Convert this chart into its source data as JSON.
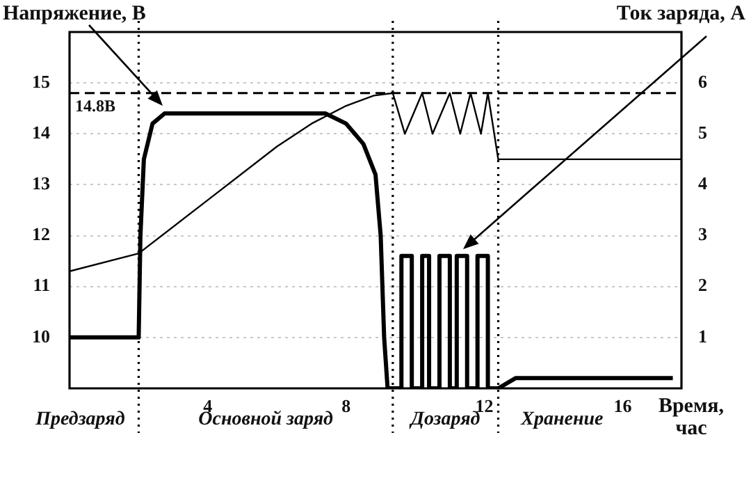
{
  "chart_data": {
    "type": "line",
    "ylabel": "Напряжение, В",
    "y2label": "Ток заряда, А",
    "xlabel": "Время, час",
    "xlim": [
      0,
      17.7
    ],
    "xticks": [
      4,
      8,
      12,
      16
    ],
    "ylim": [
      9,
      16
    ],
    "yticks": [
      10,
      11,
      12,
      13,
      14,
      15
    ],
    "y2lim": [
      0,
      7
    ],
    "y2ticks": [
      1,
      2,
      3,
      4,
      5,
      6
    ],
    "grid": "y",
    "legend": false,
    "marker": "none",
    "line_style": "solid",
    "series": [
      {
        "color": "#000000",
        "axis": "y",
        "x": [
          0,
          2.0,
          4,
          6,
          7,
          8,
          8.8,
          9.35,
          9.7,
          10.2,
          10.5,
          11.0,
          11.3,
          11.6,
          11.9,
          12.1,
          12.4,
          17.7
        ],
        "values": [
          11.3,
          11.65,
          12.7,
          13.75,
          14.2,
          14.55,
          14.75,
          14.8,
          14.0,
          14.8,
          14.0,
          14.8,
          14.0,
          14.8,
          14.0,
          14.8,
          13.5,
          13.5
        ]
      },
      {
        "color": "#000000",
        "axis": "y2",
        "x": [
          0,
          2.0,
          2.05,
          2.15,
          2.4,
          2.75,
          7.4,
          8.0,
          8.5,
          8.85,
          9.0,
          9.1,
          9.2,
          9.6,
          9.6,
          9.9,
          9.9,
          10.2,
          10.2,
          10.4,
          10.4,
          10.7,
          10.7,
          11.0,
          11.0,
          11.2,
          11.2,
          11.5,
          11.5,
          11.8,
          11.8,
          12.1,
          12.1,
          12.4,
          12.9,
          17.45
        ],
        "values": [
          1.0,
          1.0,
          3.0,
          4.5,
          5.2,
          5.4,
          5.4,
          5.2,
          4.8,
          4.2,
          3.0,
          1.0,
          0,
          0,
          2.6,
          2.6,
          0,
          0,
          2.6,
          2.6,
          0,
          0,
          2.6,
          2.6,
          0,
          0,
          2.6,
          2.6,
          0,
          0,
          2.6,
          2.6,
          0,
          0,
          0.2,
          0.2
        ]
      }
    ],
    "ref_lines": [
      {
        "axis": "y",
        "value": 14.8,
        "label": "14.8В",
        "line_style": "dashed"
      },
      {
        "axis": "x",
        "value": 2.0,
        "line_style": "dotted"
      },
      {
        "axis": "x",
        "value": 9.35,
        "line_style": "dotted"
      },
      {
        "axis": "x",
        "value": 12.4,
        "line_style": "dotted"
      }
    ],
    "annotations": [
      "Предзаряд",
      "Основной заряд",
      "Дозаряд",
      "Хранение"
    ]
  }
}
